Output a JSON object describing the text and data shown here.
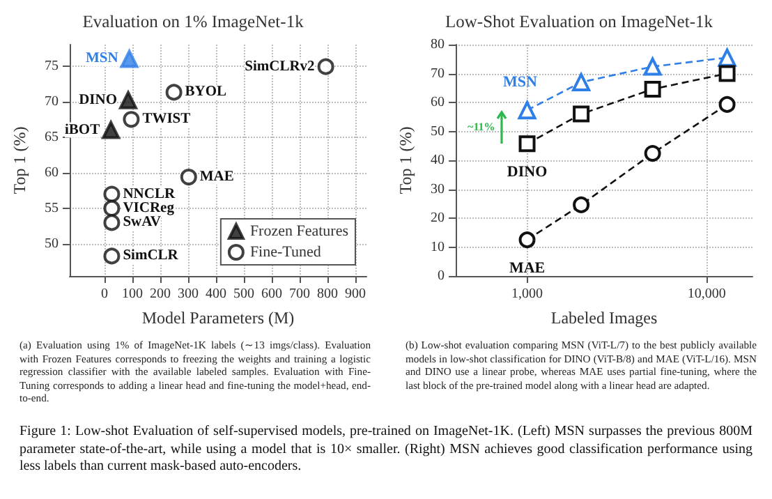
{
  "chart_data": [
    {
      "type": "scatter",
      "title": "Evaluation on 1% ImageNet-1k",
      "xlabel": "Model Parameters (M)",
      "ylabel": "Top 1 (%)",
      "xlim": [
        -125,
        940
      ],
      "xticks": [
        0,
        100,
        200,
        300,
        400,
        500,
        600,
        700,
        800,
        900
      ],
      "ylim": [
        45.5,
        78
      ],
      "yticks": [
        50,
        55,
        60,
        65,
        70,
        75
      ],
      "grid": true,
      "legend": "bottom right",
      "series": [
        {
          "name": "Frozen Features",
          "marker": "triangle",
          "color": "#111111",
          "colors": [
            "#2f7fe8",
            "#111111",
            "#111111"
          ],
          "x": [
            89,
            85,
            23
          ],
          "values": [
            76.0,
            70.2,
            66.0
          ]
        },
        {
          "name": "Fine-Tuned",
          "marker": "circle",
          "color": "#111111",
          "x": [
            794,
            249,
            96,
            302,
            26,
            26,
            26,
            26
          ],
          "values": [
            74.9,
            71.3,
            67.5,
            59.4,
            57.0,
            55.0,
            53.0,
            48.3
          ]
        }
      ],
      "annotations": [
        {
          "text": "MSN",
          "x": 89,
          "y": 76.0
        },
        {
          "text": "DINO",
          "x": 85,
          "y": 70.2
        },
        {
          "text": "iBOT",
          "x": 23,
          "y": 66.0
        },
        {
          "text": "SimCLRv2",
          "x": 794,
          "y": 74.9
        },
        {
          "text": "BYOL",
          "x": 249,
          "y": 71.3
        },
        {
          "text": "TWIST",
          "x": 96,
          "y": 67.5
        },
        {
          "text": "MAE",
          "x": 302,
          "y": 59.4
        },
        {
          "text": "NNCLR",
          "x": 26,
          "y": 57.0
        },
        {
          "text": "VICReg",
          "x": 26,
          "y": 55.0
        },
        {
          "text": "SwAV",
          "x": 26,
          "y": 53.0
        },
        {
          "text": "SimCLR",
          "x": 26,
          "y": 48.3
        },
        "(a) Evaluation using 1% of ImageNet-1K labels (∼13 imgs/class). Evaluation with Frozen Features corresponds to freezing the weights and training a logistic regression classifier with the available labeled samples. Evaluation with Fine-Tuning corresponds to adding a linear head and fine-tuning the model+head, end-to-end."
      ]
    },
    {
      "type": "line",
      "title": "Low-Shot Evaluation on ImageNet-1k",
      "xlabel": "Labeled Images",
      "ylabel": "Top 1 (%)",
      "log": "x",
      "xlim": [
        400,
        18000
      ],
      "xticks": [
        {
          "value": 1000,
          "label": "1,000"
        },
        {
          "value": 10000,
          "label": "10,000"
        }
      ],
      "ylim": [
        0,
        80
      ],
      "yticks": [
        0,
        10,
        20,
        30,
        40,
        50,
        60,
        70,
        80
      ],
      "grid": true,
      "line_style": "dashed",
      "x": [
        1000,
        2000,
        5000,
        13000
      ],
      "series": [
        {
          "name": "MSN",
          "marker": "triangle",
          "color": "#2f7fe8",
          "values": [
            57.3,
            67.0,
            72.4,
            75.5
          ]
        },
        {
          "name": "DINO",
          "marker": "square",
          "color": "#111111",
          "values": [
            45.7,
            56.0,
            64.6,
            70.0
          ]
        },
        {
          "name": "MAE",
          "marker": "circle",
          "color": "#111111",
          "values": [
            12.5,
            24.6,
            42.4,
            59.3
          ]
        }
      ],
      "annotations": [
        "~11%",
        "(b) Low-shot evaluation comparing MSN (ViT-L/7) to the best publicly available models in low-shot classification for DINO (ViT-B/8) and MAE (ViT-L/16). MSN and DINO use a linear probe, whereas MAE uses partial fine-tuning, where the last block of the pre-trained model along with a linear head are adapted.",
        "Figure 1: Low-shot Evaluation of self-supervised models, pre-trained on ImageNet-1K. (Left) MSN surpasses the previous 800M parameter state-of-the-art, while using a model that is 10× smaller. (Right) MSN achieves good classification performance using less labels than current mask-based auto-encoders."
      ]
    }
  ]
}
